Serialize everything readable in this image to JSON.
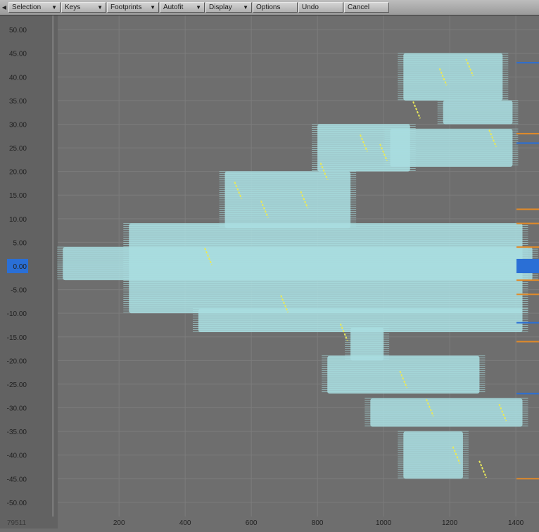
{
  "toolbar": {
    "dropdowns": [
      {
        "label": "Selection"
      },
      {
        "label": "Keys"
      },
      {
        "label": "Footprints"
      },
      {
        "label": "Autofit"
      },
      {
        "label": "Display"
      }
    ],
    "buttons": [
      {
        "label": "Options"
      },
      {
        "label": "Undo"
      },
      {
        "label": "Cancel"
      }
    ]
  },
  "status": {
    "frame_readout": "79511"
  },
  "colors": {
    "background": "#6e6e6e",
    "left_strip": "#626262",
    "grid": "#7c7c7c",
    "footprint": "#a9dde0",
    "path": "#e8e85a",
    "marker_blue": "#2a6fd6",
    "marker_orange": "#e08a2a"
  },
  "chart_data": {
    "type": "scatter",
    "xlim": [
      -160,
      1470
    ],
    "ylim": [
      -53,
      53
    ],
    "y_ticks": [
      50,
      45,
      40,
      35,
      30,
      25,
      20,
      15,
      10,
      5,
      0,
      -5,
      -10,
      -15,
      -20,
      -25,
      -30,
      -35,
      -40,
      -45,
      -50
    ],
    "y_tick_labels": [
      "50.00",
      "45.00",
      "40.00",
      "35.00",
      "30.00",
      "25.00",
      "20.00",
      "15.00",
      "10.00",
      "5.00",
      "0.00",
      "-5.00",
      "-10.00",
      "-15.00",
      "-20.00",
      "-25.00",
      "-30.00",
      "-35.00",
      "-40.00",
      "-45.00",
      "-50.00"
    ],
    "x_ticks": [
      200,
      400,
      600,
      800,
      1000,
      1200,
      1400
    ],
    "x_tick_labels": [
      "200",
      "400",
      "600",
      "800",
      "1000",
      "1200",
      "1400"
    ],
    "grid": true,
    "footprint_bands": [
      {
        "x0": 30,
        "x1": 1450,
        "y0": -3,
        "y1": 4
      },
      {
        "x0": 230,
        "x1": 1420,
        "y0": -10,
        "y1": 9
      },
      {
        "x0": 520,
        "x1": 900,
        "y0": 8,
        "y1": 20
      },
      {
        "x0": 440,
        "x1": 1420,
        "y0": -14,
        "y1": -9
      },
      {
        "x0": 800,
        "x1": 1080,
        "y0": 20,
        "y1": 30
      },
      {
        "x0": 1020,
        "x1": 1390,
        "y0": 21,
        "y1": 29
      },
      {
        "x0": 1180,
        "x1": 1390,
        "y0": 30,
        "y1": 35
      },
      {
        "x0": 1060,
        "x1": 1360,
        "y0": 35,
        "y1": 45
      },
      {
        "x0": 900,
        "x1": 1000,
        "y0": -13,
        "y1": -20
      },
      {
        "x0": 830,
        "x1": 1290,
        "y0": -19,
        "y1": -27
      },
      {
        "x0": 960,
        "x1": 1420,
        "y0": -28,
        "y1": -34
      },
      {
        "x0": 1060,
        "x1": 1240,
        "y0": -35,
        "y1": -45
      }
    ],
    "path_points": [
      {
        "x": 470,
        "y": 2
      },
      {
        "x": 560,
        "y": 16
      },
      {
        "x": 640,
        "y": 12
      },
      {
        "x": 700,
        "y": -8
      },
      {
        "x": 760,
        "y": 14
      },
      {
        "x": 820,
        "y": 20
      },
      {
        "x": 880,
        "y": -14
      },
      {
        "x": 940,
        "y": 26
      },
      {
        "x": 1000,
        "y": 24
      },
      {
        "x": 1060,
        "y": -24
      },
      {
        "x": 1100,
        "y": 33
      },
      {
        "x": 1140,
        "y": -30
      },
      {
        "x": 1180,
        "y": 40
      },
      {
        "x": 1220,
        "y": -40
      },
      {
        "x": 1260,
        "y": 42
      },
      {
        "x": 1300,
        "y": -43
      },
      {
        "x": 1330,
        "y": 27
      },
      {
        "x": 1360,
        "y": -31
      }
    ],
    "right_edge_markers": [
      {
        "y": 43,
        "color": "blue"
      },
      {
        "y": 28,
        "color": "orange"
      },
      {
        "y": 26,
        "color": "blue"
      },
      {
        "y": 12,
        "color": "orange"
      },
      {
        "y": 9,
        "color": "orange"
      },
      {
        "y": 4,
        "color": "orange"
      },
      {
        "y": 1,
        "color": "blue"
      },
      {
        "y": -1,
        "color": "blue"
      },
      {
        "y": -3,
        "color": "orange"
      },
      {
        "y": -6,
        "color": "orange"
      },
      {
        "y": -12,
        "color": "blue"
      },
      {
        "y": -16,
        "color": "orange"
      },
      {
        "y": -27,
        "color": "blue"
      },
      {
        "y": -45,
        "color": "orange"
      }
    ]
  }
}
